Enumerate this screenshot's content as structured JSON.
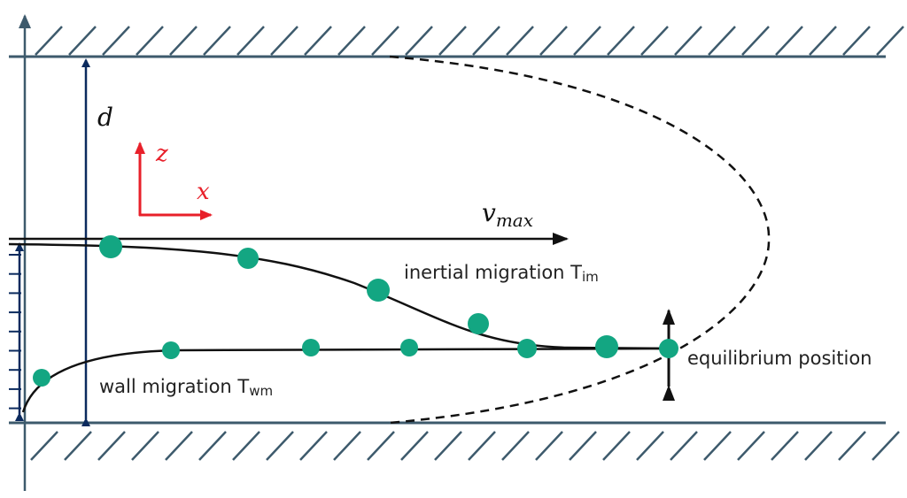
{
  "labels": {
    "d": "d",
    "z": "z",
    "x": "x",
    "v": {
      "base": "v",
      "subscript": "max"
    },
    "inertial": {
      "base": "inertial migration T",
      "subscript": "im"
    },
    "wall": {
      "base": "wall migration T",
      "subscript": "wm"
    },
    "equilibrium": "equilibrium position"
  }
}
